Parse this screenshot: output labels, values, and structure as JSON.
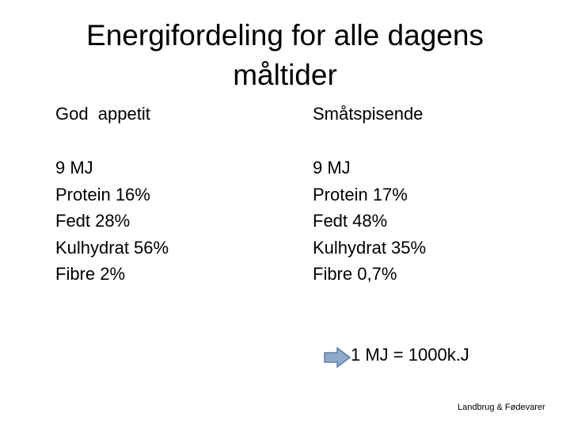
{
  "title": {
    "lines": [
      "Energifordeling for alle dagens",
      "måltider"
    ]
  },
  "columns": [
    {
      "heading": "God  appetit",
      "lines": [
        "9 MJ",
        "Protein 16%",
        "Fedt 28%",
        "Kulhydrat 56%",
        "Fibre 2%"
      ]
    },
    {
      "heading": "Småtspisende",
      "lines": [
        "9 MJ",
        "Protein 17%",
        "Fedt 48%",
        "Kulhydrat 35%",
        "Fibre 0,7%"
      ]
    }
  ],
  "note": "1 MJ = 1000k.J",
  "footer": "Landbrug & Fødevarer"
}
